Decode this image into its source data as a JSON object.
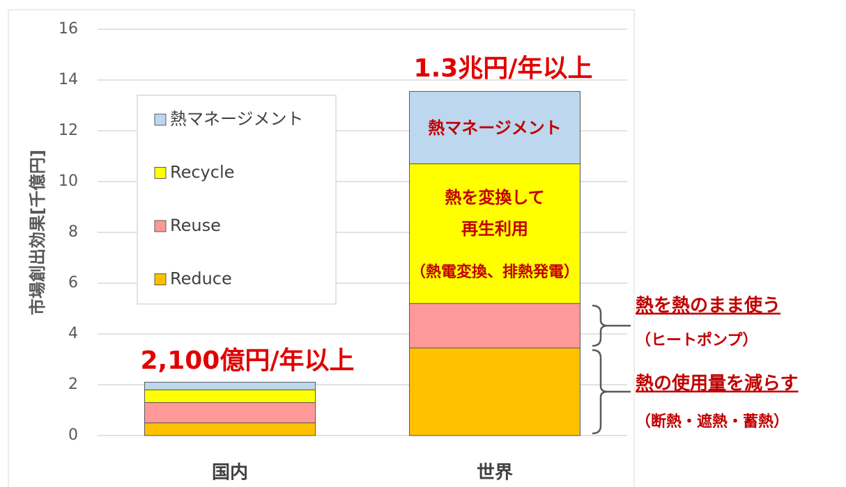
{
  "chart_data": {
    "type": "stacked_bar",
    "ylabel": "市場創出効果[千億円]",
    "categories": [
      "国内",
      "世界"
    ],
    "series": [
      {
        "name": "Reduce",
        "color": "#FFC000",
        "values": [
          0.5,
          3.45
        ]
      },
      {
        "name": "Reuse",
        "color": "#FF9999",
        "values": [
          0.8,
          1.75
        ]
      },
      {
        "name": "Recycle",
        "color": "#FFFF00",
        "values": [
          0.5,
          5.5
        ]
      },
      {
        "name": "熱マネージメント",
        "color": "#BDD7EE",
        "values": [
          0.3,
          2.85
        ]
      }
    ],
    "ylim": [
      0,
      16
    ],
    "yticks": [
      0,
      2,
      4,
      6,
      8,
      10,
      12,
      14,
      16
    ],
    "grid": true,
    "annotations": [
      "1.3兆円/年以上",
      "2,100億円/年以上",
      "熱マネージメント",
      "熱を変換して",
      "再生利用",
      "（熱電変換、排熱発電）",
      "熱を熱のまま使う",
      "（ヒートポンプ）",
      "熱の使用量を減らす",
      "（断熱・遮熱・蓄熱）"
    ]
  }
}
